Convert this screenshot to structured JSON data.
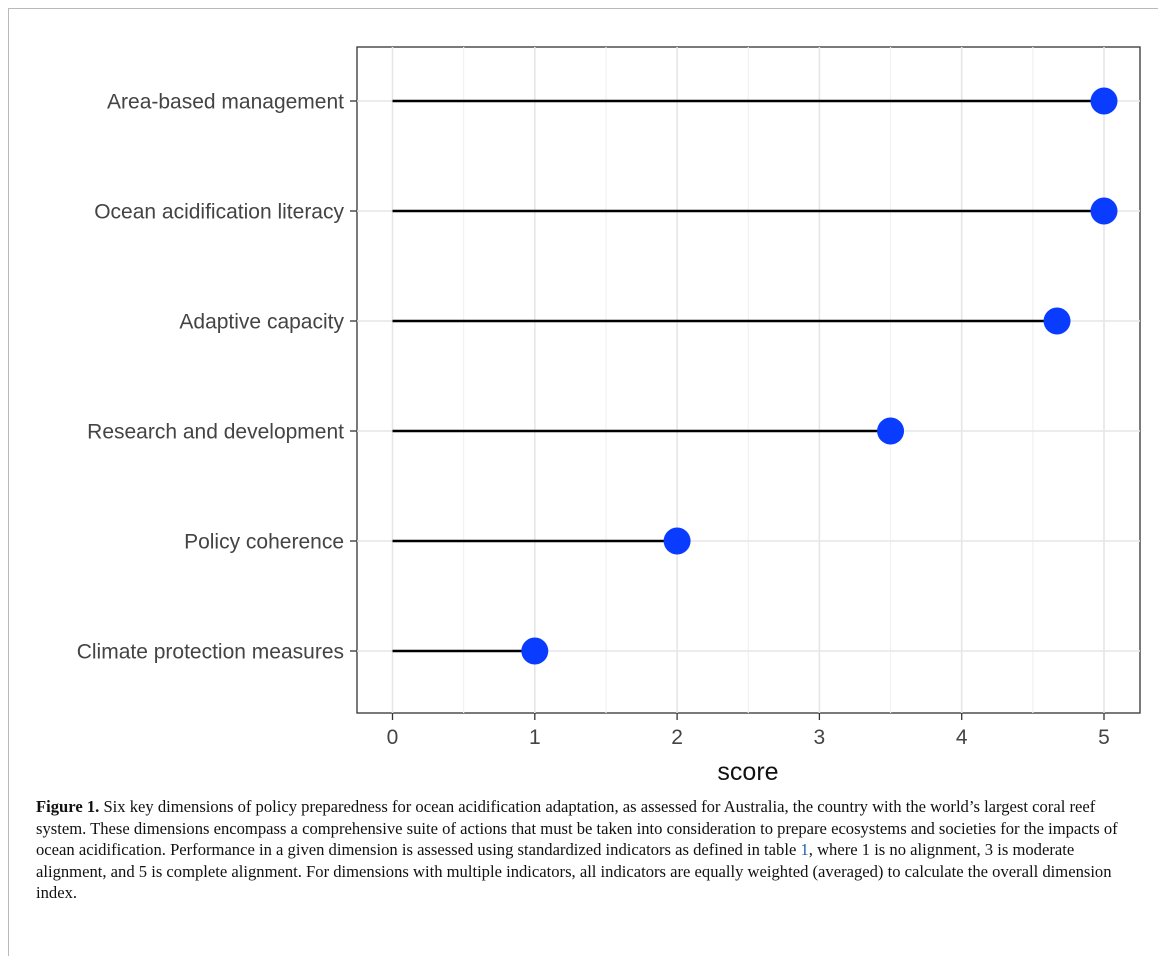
{
  "chart_data": {
    "type": "lollipop",
    "categories": [
      "Area-based management",
      "Ocean acidification literacy",
      "Adaptive capacity",
      "Research and development",
      "Policy coherence",
      "Climate protection measures"
    ],
    "values": [
      5,
      5,
      4.67,
      3.5,
      2,
      1
    ],
    "xlabel": "score",
    "xlim": [
      -0.25,
      5.25
    ],
    "xticks": [
      "0",
      "1",
      "2",
      "3",
      "4",
      "5"
    ],
    "grid": true,
    "point_color": "#0a3cff",
    "stem_color": "#000000"
  },
  "caption": {
    "label": "Figure 1.",
    "text_before": " Six key dimensions of policy preparedness for ocean acidification adaptation, as assessed for Australia, the country with the world’s largest coral reef system. These dimensions encompass a comprehensive suite of actions that must be taken into consideration to prepare ecosystems and societies for the impacts of ocean acidification. Performance in a given dimension is assessed using standardized indicators as defined in table ",
    "ref": "1",
    "text_after": ", where 1 is no alignment, 3 is moderate alignment, and 5 is complete alignment. For dimensions with multiple indicators, all indicators are equally weighted (averaged) to calculate the overall dimension index."
  }
}
